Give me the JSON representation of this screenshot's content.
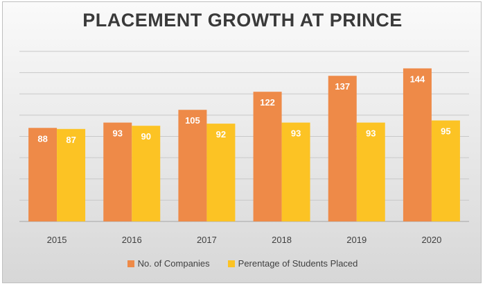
{
  "chart_data": {
    "type": "bar",
    "title": "PLACEMENT GROWTH AT PRINCE",
    "categories": [
      "2015",
      "2016",
      "2017",
      "2018",
      "2019",
      "2020"
    ],
    "series": [
      {
        "name": "No. of Companies",
        "values": [
          88,
          93,
          105,
          122,
          137,
          144
        ],
        "color": "#ee8a48"
      },
      {
        "name": "Perentage of Students Placed",
        "values": [
          87,
          90,
          92,
          93,
          93,
          95
        ],
        "color": "#fcc324"
      }
    ],
    "ylim": [
      0,
      160
    ],
    "ytick_step": 20,
    "gridlines": true,
    "y_tick_labels_shown": false,
    "legend_position": "bottom",
    "data_labels": true
  }
}
